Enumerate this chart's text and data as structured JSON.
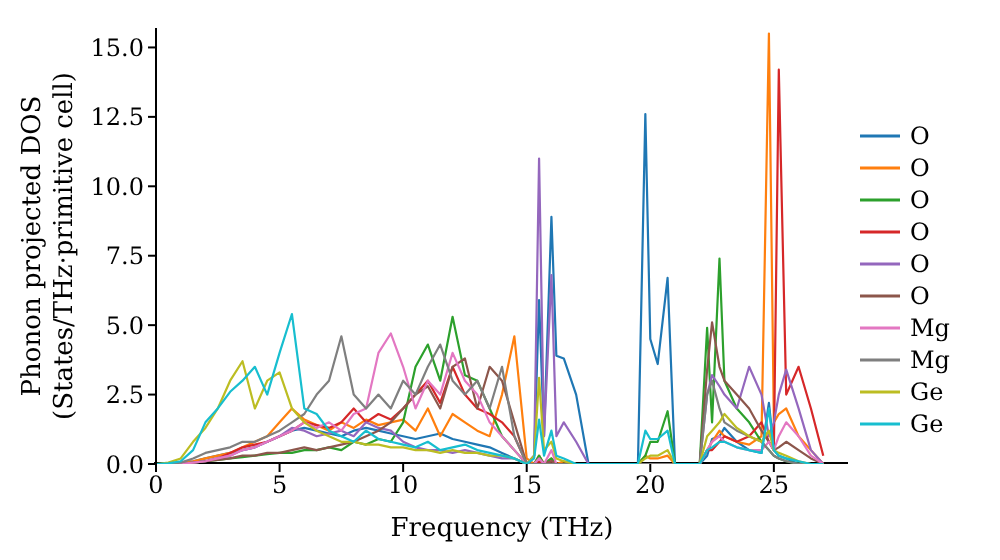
{
  "chart_data": {
    "type": "line",
    "xlabel": "Frequency (THz)",
    "ylabel": "Phonon projected DOS\n(States/THz·primitive cell)",
    "x": [
      0,
      0.5,
      1,
      1.5,
      2,
      2.5,
      3,
      3.5,
      4,
      4.5,
      5,
      5.5,
      6,
      6.5,
      7,
      7.5,
      8,
      8.5,
      9,
      9.5,
      10,
      10.5,
      11,
      11.5,
      12,
      12.5,
      13,
      13.5,
      14,
      14.5,
      15,
      15.3,
      15.5,
      15.7,
      16,
      16.2,
      16.5,
      17,
      17.5,
      18,
      18.5,
      19,
      19.5,
      19.8,
      20,
      20.3,
      20.7,
      21,
      21.5,
      22,
      22.3,
      22.5,
      22.8,
      23,
      23.5,
      24,
      24.5,
      24.8,
      25,
      25.2,
      25.5,
      26,
      26.5,
      27
    ],
    "xlim": [
      0,
      28
    ],
    "xticks": [
      0,
      5,
      10,
      15,
      20,
      25
    ],
    "ylim": [
      0,
      15.7
    ],
    "yticks": [
      {
        "value": 0,
        "label": "0.0"
      },
      {
        "value": 2.5,
        "label": "2.5"
      },
      {
        "value": 5,
        "label": "5.0"
      },
      {
        "value": 7.5,
        "label": "7.5"
      },
      {
        "value": 10,
        "label": "10.0"
      },
      {
        "value": 12.5,
        "label": "12.5"
      },
      {
        "value": 15,
        "label": "15.0"
      }
    ],
    "legend": "right",
    "marker": "none",
    "line_style": "solid",
    "series": [
      {
        "name": "O",
        "color": "#1f77b4",
        "values": [
          0,
          0,
          0.05,
          0.1,
          0.2,
          0.3,
          0.4,
          0.5,
          0.6,
          0.8,
          1.0,
          1.2,
          1.3,
          1.2,
          1.1,
          1.0,
          1.2,
          1.3,
          1.2,
          1.1,
          1.0,
          0.9,
          1.0,
          1.1,
          0.9,
          0.8,
          0.7,
          0.6,
          0.4,
          0.2,
          0,
          0.3,
          5.9,
          1.0,
          8.9,
          3.9,
          3.8,
          2.5,
          0,
          0,
          0,
          0,
          0,
          12.6,
          4.5,
          3.6,
          6.7,
          0,
          0,
          0,
          0.3,
          0.9,
          1.0,
          1.3,
          0.8,
          0.5,
          0.4,
          2.2,
          0.5,
          0.3,
          0.2,
          0,
          0,
          0
        ]
      },
      {
        "name": "O",
        "color": "#ff7f0e",
        "values": [
          0,
          0,
          0.05,
          0.1,
          0.2,
          0.3,
          0.4,
          0.6,
          0.8,
          1.0,
          1.5,
          2.0,
          1.6,
          1.4,
          1.2,
          1.5,
          1.3,
          1.6,
          1.4,
          1.5,
          1.6,
          1.2,
          2.0,
          1.0,
          1.8,
          1.5,
          1.2,
          1.0,
          2.5,
          4.6,
          0.2,
          0,
          0.3,
          0,
          0.2,
          0,
          0.1,
          0,
          0,
          0,
          0,
          0,
          0,
          0.3,
          0.2,
          0.2,
          0.3,
          0,
          0,
          0,
          0.5,
          0.8,
          1.2,
          1.0,
          0.8,
          0.7,
          1.0,
          15.5,
          1.5,
          1.8,
          2.0,
          1.0,
          0.5,
          0
        ]
      },
      {
        "name": "O",
        "color": "#2ca02c",
        "values": [
          0,
          0,
          0,
          0.05,
          0.1,
          0.15,
          0.2,
          0.25,
          0.3,
          0.35,
          0.4,
          0.4,
          0.5,
          0.5,
          0.6,
          0.5,
          0.8,
          0.7,
          0.9,
          0.8,
          1.5,
          3.5,
          4.3,
          3.0,
          5.3,
          3.2,
          3.0,
          2.0,
          1.0,
          0.5,
          0,
          0,
          0.3,
          0,
          0.2,
          0,
          0,
          0,
          0,
          0,
          0,
          0,
          0,
          0.3,
          0.8,
          0.8,
          1.9,
          0,
          0,
          0,
          4.9,
          1.5,
          7.4,
          3.0,
          2.0,
          1.5,
          0.8,
          0.5,
          0.3,
          0.2,
          0.1,
          0,
          0,
          0
        ]
      },
      {
        "name": "O",
        "color": "#d62728",
        "values": [
          null,
          null,
          null,
          null,
          0.1,
          0.2,
          0.4,
          0.6,
          0.7,
          0.8,
          1.0,
          1.2,
          1.5,
          1.4,
          1.3,
          1.5,
          2.0,
          1.5,
          1.8,
          1.6,
          2.0,
          2.5,
          3.0,
          2.2,
          3.5,
          2.5,
          2.0,
          1.8,
          1.5,
          1.0,
          0,
          0,
          0.1,
          0,
          0.1,
          0,
          0,
          0,
          0,
          0,
          0,
          0,
          0,
          0,
          0,
          0,
          0,
          0,
          0,
          0,
          0.5,
          0.5,
          0.8,
          1.0,
          0.8,
          1.0,
          1.5,
          0.8,
          0.5,
          14.2,
          2.5,
          3.5,
          2.0,
          0.3
        ]
      },
      {
        "name": "O",
        "color": "#9467bd",
        "values": [
          0,
          0,
          0,
          0.05,
          0.1,
          0.2,
          0.3,
          0.5,
          0.6,
          0.8,
          1.0,
          1.3,
          1.2,
          1.0,
          1.1,
          1.2,
          1.0,
          1.5,
          1.3,
          1.2,
          0.8,
          0.6,
          0.5,
          0.5,
          0.4,
          0.5,
          0.4,
          0.3,
          0.2,
          0.2,
          0,
          0.3,
          11.0,
          1.0,
          6.8,
          1.0,
          1.5,
          0.8,
          0,
          0,
          0,
          0,
          0,
          0,
          0,
          0,
          0,
          0,
          0,
          0,
          2.5,
          3.2,
          2.8,
          2.5,
          2.0,
          3.5,
          2.5,
          1.0,
          1.5,
          2.5,
          3.4,
          2.0,
          0.5,
          0
        ]
      },
      {
        "name": "O",
        "color": "#8c564b",
        "values": [
          0,
          0,
          0,
          0.05,
          0.1,
          0.15,
          0.2,
          0.3,
          0.3,
          0.4,
          0.4,
          0.5,
          0.6,
          0.5,
          0.6,
          0.7,
          0.8,
          1.0,
          1.2,
          1.5,
          2.0,
          2.5,
          2.8,
          2.0,
          3.5,
          3.8,
          2.0,
          3.5,
          3.0,
          1.5,
          0,
          0,
          0.2,
          0,
          0.1,
          0,
          0,
          0,
          0,
          0,
          0,
          0,
          0,
          0,
          0,
          0,
          0,
          0,
          0,
          0,
          3.4,
          5.1,
          3.5,
          3.0,
          2.5,
          2.0,
          1.2,
          0.8,
          0.5,
          0.6,
          0.8,
          0.5,
          0.2,
          0
        ]
      },
      {
        "name": "Mg",
        "color": "#e377c2",
        "values": [
          0,
          0,
          0,
          0.05,
          0.1,
          0.2,
          0.3,
          0.5,
          0.6,
          0.8,
          1.0,
          1.2,
          1.5,
          1.3,
          1.5,
          1.2,
          1.8,
          2.0,
          4.0,
          4.7,
          3.5,
          2.0,
          3.0,
          2.5,
          4.0,
          3.0,
          2.5,
          1.5,
          1.0,
          0.5,
          0,
          0,
          0.2,
          0,
          0.5,
          0,
          0,
          0,
          0,
          0,
          0,
          0,
          0,
          0,
          0,
          0,
          0,
          0,
          0,
          0,
          0.5,
          0.8,
          1.0,
          0.8,
          0.6,
          0.5,
          0.5,
          0.8,
          0.5,
          1.0,
          1.5,
          1.0,
          0.3,
          0
        ]
      },
      {
        "name": "Mg",
        "color": "#7f7f7f",
        "values": [
          0,
          0,
          0.05,
          0.2,
          0.4,
          0.5,
          0.6,
          0.8,
          0.8,
          1.0,
          1.2,
          1.5,
          1.8,
          2.5,
          3.0,
          4.6,
          2.5,
          2.0,
          2.5,
          2.0,
          3.0,
          2.5,
          3.5,
          4.3,
          3.0,
          2.5,
          3.0,
          2.0,
          3.5,
          1.0,
          0,
          0,
          0,
          0,
          0,
          0,
          0,
          0,
          0,
          0,
          0,
          0,
          0,
          0,
          0,
          0,
          0,
          0,
          0,
          0,
          2.5,
          3.0,
          2.0,
          1.5,
          1.2,
          1.0,
          0.8,
          0.5,
          0.3,
          0.2,
          0.1,
          0,
          0,
          0
        ]
      },
      {
        "name": "Ge",
        "color": "#bcbd22",
        "values": [
          0,
          0.05,
          0.2,
          0.8,
          1.3,
          2.0,
          3.0,
          3.7,
          2.0,
          3.0,
          3.3,
          2.0,
          1.5,
          1.2,
          1.0,
          0.8,
          0.8,
          0.7,
          0.7,
          0.6,
          0.6,
          0.5,
          0.5,
          0.4,
          0.5,
          0.4,
          0.4,
          0.3,
          0.3,
          0.2,
          0,
          0.3,
          3.1,
          0.5,
          0.8,
          0.2,
          0.1,
          0,
          0,
          0,
          0,
          0,
          0,
          0.2,
          0.3,
          0.3,
          0.5,
          0,
          0,
          0,
          1.0,
          1.2,
          1.5,
          1.8,
          1.3,
          1.0,
          0.8,
          1.2,
          0.5,
          0.4,
          0.3,
          0.1,
          0,
          0
        ]
      },
      {
        "name": "Ge",
        "color": "#17becf",
        "values": [
          0,
          0.02,
          0.1,
          0.5,
          1.5,
          2.0,
          2.6,
          3.0,
          3.5,
          2.5,
          4.0,
          5.4,
          2.0,
          1.8,
          1.2,
          1.0,
          0.8,
          1.2,
          0.9,
          0.8,
          0.7,
          0.6,
          0.8,
          0.5,
          0.6,
          0.7,
          0.5,
          0.4,
          0.3,
          0.2,
          0,
          0.2,
          1.6,
          0.3,
          1.2,
          0.3,
          0.2,
          0,
          0,
          0,
          0,
          0,
          0,
          1.2,
          0.9,
          0.9,
          1.2,
          0,
          0,
          0,
          0.5,
          0.6,
          0.8,
          0.8,
          0.6,
          0.5,
          0.4,
          2.0,
          0.5,
          0.3,
          0.2,
          0.1,
          0,
          0
        ]
      }
    ]
  }
}
